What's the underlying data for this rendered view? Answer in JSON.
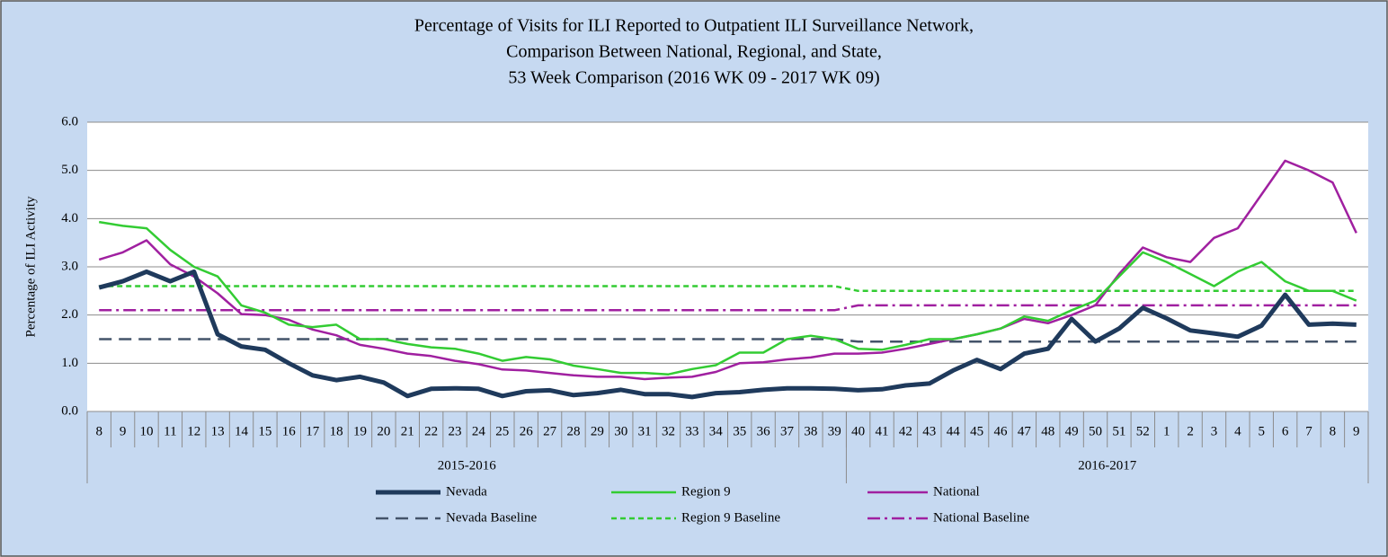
{
  "chart_data": {
    "type": "line",
    "title_lines": [
      "Percentage of Visits for ILI Reported to Outpatient ILI Surveillance Network,",
      "Comparison Between National, Regional, and State,",
      "53 Week Comparison (2016 WK 09 - 2017 WK 09)"
    ],
    "y_label": "Percentage of ILI Activity",
    "category_groups": [
      {
        "label": "2015-2016",
        "categories": [
          "8",
          "9",
          "10",
          "11",
          "12",
          "13",
          "14",
          "15",
          "16",
          "17",
          "18",
          "19",
          "20",
          "21",
          "22",
          "23",
          "24",
          "25",
          "26",
          "27",
          "28",
          "29",
          "30",
          "31",
          "32",
          "33",
          "34",
          "35",
          "36",
          "37",
          "38",
          "39"
        ]
      },
      {
        "label": "2016-2017",
        "categories": [
          "40",
          "41",
          "42",
          "43",
          "44",
          "45",
          "46",
          "47",
          "48",
          "49",
          "50",
          "51",
          "52",
          "1",
          "2",
          "3",
          "4",
          "5",
          "6",
          "7",
          "8",
          "9"
        ]
      }
    ],
    "ylim": [
      0,
      6
    ],
    "yticks": [
      {
        "value": 0,
        "label": "0.0"
      },
      {
        "value": 1,
        "label": "1.0"
      },
      {
        "value": 2,
        "label": "2.0"
      },
      {
        "value": 3,
        "label": "3.0"
      },
      {
        "value": 4,
        "label": "4.0"
      },
      {
        "value": 5,
        "label": "5.0"
      },
      {
        "value": 6,
        "label": "6.0"
      }
    ],
    "grid": true,
    "series": [
      {
        "name": "Nevada",
        "color": "#1f3a5c",
        "width": 5,
        "dash": "solid",
        "values": [
          2.57,
          2.7,
          2.9,
          2.7,
          2.9,
          1.6,
          1.35,
          1.28,
          1.0,
          0.75,
          0.65,
          0.72,
          0.6,
          0.32,
          0.47,
          0.48,
          0.47,
          0.32,
          0.42,
          0.44,
          0.34,
          0.38,
          0.45,
          0.36,
          0.36,
          0.3,
          0.38,
          0.4,
          0.45,
          0.48,
          0.48,
          0.47,
          0.44,
          0.46,
          0.54,
          0.58,
          0.85,
          1.07,
          0.88,
          1.2,
          1.3,
          1.92,
          1.45,
          1.72,
          2.15,
          1.93,
          1.68,
          1.62,
          1.55,
          1.78,
          2.42,
          1.8,
          1.82,
          1.8
        ]
      },
      {
        "name": "Region 9",
        "color": "#33cc33",
        "width": 2.5,
        "dash": "solid",
        "values": [
          3.93,
          3.85,
          3.8,
          3.35,
          3.0,
          2.8,
          2.2,
          2.05,
          1.8,
          1.75,
          1.8,
          1.5,
          1.5,
          1.4,
          1.33,
          1.3,
          1.2,
          1.05,
          1.13,
          1.08,
          0.95,
          0.88,
          0.8,
          0.8,
          0.77,
          0.88,
          0.96,
          1.22,
          1.22,
          1.5,
          1.57,
          1.5,
          1.3,
          1.28,
          1.38,
          1.5,
          1.5,
          1.6,
          1.72,
          1.97,
          1.88,
          2.1,
          2.3,
          2.8,
          3.3,
          3.1,
          2.85,
          2.6,
          2.9,
          3.1,
          2.7,
          2.5,
          2.5,
          2.3
        ]
      },
      {
        "name": "National",
        "color": "#a020a0",
        "width": 2.5,
        "dash": "solid",
        "values": [
          3.15,
          3.3,
          3.55,
          3.05,
          2.8,
          2.45,
          2.02,
          2.0,
          1.9,
          1.7,
          1.58,
          1.38,
          1.3,
          1.2,
          1.15,
          1.05,
          0.98,
          0.87,
          0.85,
          0.8,
          0.75,
          0.72,
          0.72,
          0.67,
          0.7,
          0.72,
          0.82,
          1.0,
          1.02,
          1.08,
          1.12,
          1.2,
          1.2,
          1.22,
          1.3,
          1.4,
          1.5,
          1.6,
          1.72,
          1.92,
          1.83,
          2.0,
          2.2,
          2.85,
          3.4,
          3.2,
          3.1,
          3.6,
          3.8,
          4.5,
          5.2,
          5.0,
          4.75,
          3.7
        ]
      },
      {
        "name": "Nevada Baseline",
        "color": "#44546a",
        "width": 2.5,
        "dash": "dashed",
        "values": [
          1.5,
          1.5,
          1.5,
          1.5,
          1.5,
          1.5,
          1.5,
          1.5,
          1.5,
          1.5,
          1.5,
          1.5,
          1.5,
          1.5,
          1.5,
          1.5,
          1.5,
          1.5,
          1.5,
          1.5,
          1.5,
          1.5,
          1.5,
          1.5,
          1.5,
          1.5,
          1.5,
          1.5,
          1.5,
          1.5,
          1.5,
          1.5,
          1.45,
          1.45,
          1.45,
          1.45,
          1.45,
          1.45,
          1.45,
          1.45,
          1.45,
          1.45,
          1.45,
          1.45,
          1.45,
          1.45,
          1.45,
          1.45,
          1.45,
          1.45,
          1.45,
          1.45,
          1.45,
          1.45
        ]
      },
      {
        "name": "Region 9 Baseline",
        "color": "#33cc33",
        "width": 2.5,
        "dash": "short-dashed",
        "values": [
          2.6,
          2.6,
          2.6,
          2.6,
          2.6,
          2.6,
          2.6,
          2.6,
          2.6,
          2.6,
          2.6,
          2.6,
          2.6,
          2.6,
          2.6,
          2.6,
          2.6,
          2.6,
          2.6,
          2.6,
          2.6,
          2.6,
          2.6,
          2.6,
          2.6,
          2.6,
          2.6,
          2.6,
          2.6,
          2.6,
          2.6,
          2.6,
          2.5,
          2.5,
          2.5,
          2.5,
          2.5,
          2.5,
          2.5,
          2.5,
          2.5,
          2.5,
          2.5,
          2.5,
          2.5,
          2.5,
          2.5,
          2.5,
          2.5,
          2.5,
          2.5,
          2.5,
          2.5,
          2.5
        ]
      },
      {
        "name": "National Baseline",
        "color": "#a020a0",
        "width": 2.5,
        "dash": "dash-dot",
        "values": [
          2.1,
          2.1,
          2.1,
          2.1,
          2.1,
          2.1,
          2.1,
          2.1,
          2.1,
          2.1,
          2.1,
          2.1,
          2.1,
          2.1,
          2.1,
          2.1,
          2.1,
          2.1,
          2.1,
          2.1,
          2.1,
          2.1,
          2.1,
          2.1,
          2.1,
          2.1,
          2.1,
          2.1,
          2.1,
          2.1,
          2.1,
          2.1,
          2.2,
          2.2,
          2.2,
          2.2,
          2.2,
          2.2,
          2.2,
          2.2,
          2.2,
          2.2,
          2.2,
          2.2,
          2.2,
          2.2,
          2.2,
          2.2,
          2.2,
          2.2,
          2.2,
          2.2,
          2.2,
          2.2
        ]
      }
    ]
  }
}
